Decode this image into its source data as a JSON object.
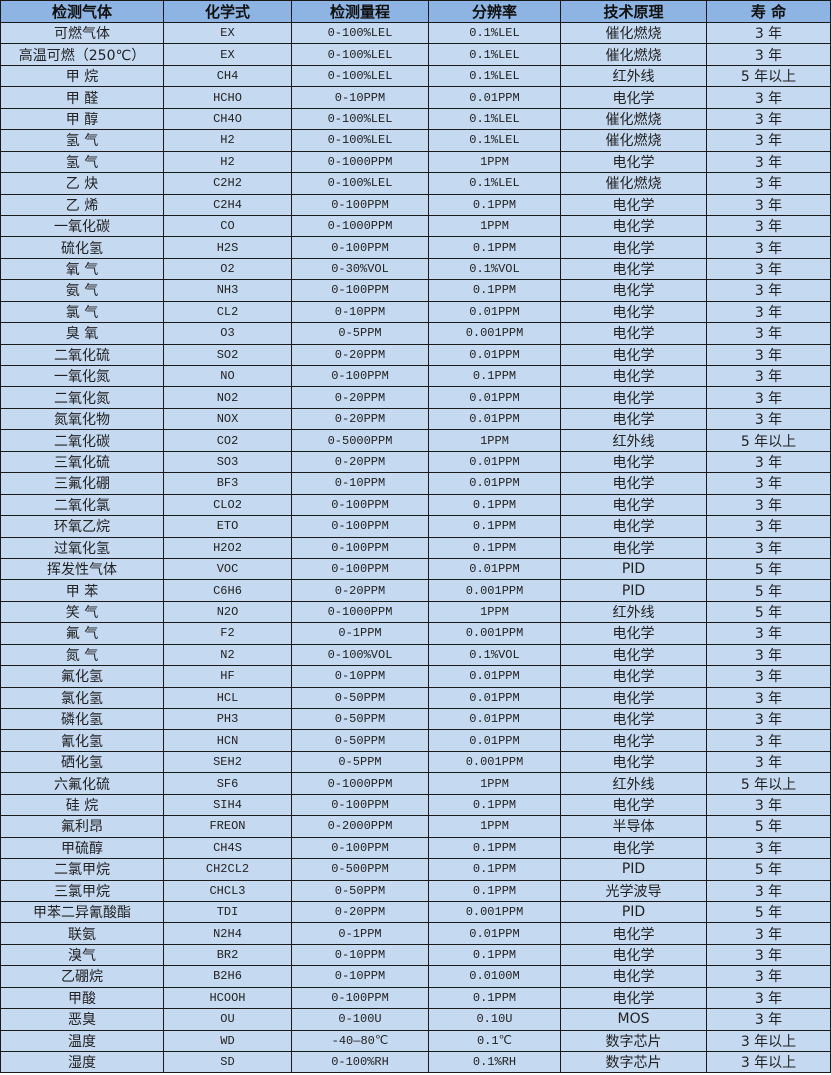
{
  "colors": {
    "header_bg": "#8db4e2",
    "row_bg": "#c5d9f1",
    "border": "#1a1a1a"
  },
  "table": {
    "headers": [
      "检测气体",
      "化学式",
      "检测量程",
      "分辨率",
      "技术原理",
      "寿 命"
    ],
    "rows": [
      [
        "可燃气体",
        "EX",
        "0-100%LEL",
        "0.1%LEL",
        "催化燃烧",
        "3 年"
      ],
      [
        "高温可燃（250℃）",
        "EX",
        "0-100%LEL",
        "0.1%LEL",
        "催化燃烧",
        "3 年"
      ],
      [
        "甲 烷",
        "CH4",
        "0-100%LEL",
        "0.1%LEL",
        "红外线",
        "5 年以上"
      ],
      [
        "甲 醛",
        "HCHO",
        "0-10PPM",
        "0.01PPM",
        "电化学",
        "3 年"
      ],
      [
        "甲 醇",
        "CH4O",
        "0-100%LEL",
        "0.1%LEL",
        "催化燃烧",
        "3 年"
      ],
      [
        "氢 气",
        "H2",
        "0-100%LEL",
        "0.1%LEL",
        "催化燃烧",
        "3 年"
      ],
      [
        "氢 气",
        "H2",
        "0-1000PPM",
        "1PPM",
        "电化学",
        "3 年"
      ],
      [
        "乙 炔",
        "C2H2",
        "0-100%LEL",
        "0.1%LEL",
        "催化燃烧",
        "3 年"
      ],
      [
        "乙 烯",
        "C2H4",
        "0-100PPM",
        "0.1PPM",
        "电化学",
        "3 年"
      ],
      [
        "一氧化碳",
        "CO",
        "0-1000PPM",
        "1PPM",
        "电化学",
        "3 年"
      ],
      [
        "硫化氢",
        "H2S",
        "0-100PPM",
        "0.1PPM",
        "电化学",
        "3 年"
      ],
      [
        "氧 气",
        "O2",
        "0-30%VOL",
        "0.1%VOL",
        "电化学",
        "3 年"
      ],
      [
        "氨 气",
        "NH3",
        "0-100PPM",
        "0.1PPM",
        "电化学",
        "3 年"
      ],
      [
        "氯 气",
        "CL2",
        "0-10PPM",
        "0.01PPM",
        "电化学",
        "3 年"
      ],
      [
        "臭 氧",
        "O3",
        "0-5PPM",
        "0.001PPM",
        "电化学",
        "3 年"
      ],
      [
        "二氧化硫",
        "SO2",
        "0-20PPM",
        "0.01PPM",
        "电化学",
        "3 年"
      ],
      [
        "一氧化氮",
        "NO",
        "0-100PPM",
        "0.1PPM",
        "电化学",
        "3 年"
      ],
      [
        "二氧化氮",
        "NO2",
        "0-20PPM",
        "0.01PPM",
        "电化学",
        "3 年"
      ],
      [
        "氮氧化物",
        "NOX",
        "0-20PPM",
        "0.01PPM",
        "电化学",
        "3 年"
      ],
      [
        "二氧化碳",
        "CO2",
        "0-5000PPM",
        "1PPM",
        "红外线",
        "5 年以上"
      ],
      [
        "三氧化硫",
        "SO3",
        "0-20PPM",
        "0.01PPM",
        "电化学",
        "3 年"
      ],
      [
        "三氟化硼",
        "BF3",
        "0-10PPM",
        "0.01PPM",
        "电化学",
        "3 年"
      ],
      [
        "二氧化氯",
        "CLO2",
        "0-100PPM",
        "0.1PPM",
        "电化学",
        "3 年"
      ],
      [
        "环氧乙烷",
        "ETO",
        "0-100PPM",
        "0.1PPM",
        "电化学",
        "3 年"
      ],
      [
        "过氧化氢",
        "H2O2",
        "0-100PPM",
        "0.1PPM",
        "电化学",
        "3 年"
      ],
      [
        "挥发性气体",
        "VOC",
        "0-100PPM",
        "0.01PPM",
        "PID",
        "5 年"
      ],
      [
        "甲 苯",
        "C6H6",
        "0-20PPM",
        "0.001PPM",
        "PID",
        "5 年"
      ],
      [
        "笑 气",
        "N2O",
        "0-1000PPM",
        "1PPM",
        "红外线",
        "5 年"
      ],
      [
        "氟 气",
        "F2",
        "0-1PPM",
        "0.001PPM",
        "电化学",
        "3 年"
      ],
      [
        "氮 气",
        "N2",
        "0-100%VOL",
        "0.1%VOL",
        "电化学",
        "3 年"
      ],
      [
        "氟化氢",
        "HF",
        "0-10PPM",
        "0.01PPM",
        "电化学",
        "3 年"
      ],
      [
        "氯化氢",
        "HCL",
        "0-50PPM",
        "0.01PPM",
        "电化学",
        "3 年"
      ],
      [
        "磷化氢",
        "PH3",
        "0-50PPM",
        "0.01PPM",
        "电化学",
        "3 年"
      ],
      [
        "氰化氢",
        "HCN",
        "0-50PPM",
        "0.01PPM",
        "电化学",
        "3 年"
      ],
      [
        "硒化氢",
        "SEH2",
        "0-5PPM",
        "0.001PPM",
        "电化学",
        "3 年"
      ],
      [
        "六氟化硫",
        "SF6",
        "0-1000PPM",
        "1PPM",
        "红外线",
        "5 年以上"
      ],
      [
        "硅 烷",
        "SIH4",
        "0-100PPM",
        "0.1PPM",
        "电化学",
        "3 年"
      ],
      [
        "氟利昂",
        "FREON",
        "0-2000PPM",
        "1PPM",
        "半导体",
        "5 年"
      ],
      [
        "甲硫醇",
        "CH4S",
        "0-100PPM",
        "0.1PPM",
        "电化学",
        "3 年"
      ],
      [
        "二氯甲烷",
        "CH2CL2",
        "0-500PPM",
        "0.1PPM",
        "PID",
        "5 年"
      ],
      [
        "三氯甲烷",
        "CHCL3",
        "0-50PPM",
        "0.1PPM",
        "光学波导",
        "3 年"
      ],
      [
        "甲苯二异氰酸酯",
        "TDI",
        "0-20PPM",
        "0.001PPM",
        "PID",
        "5 年"
      ],
      [
        "联氨",
        "N2H4",
        "0-1PPM",
        "0.01PPM",
        "电化学",
        "3 年"
      ],
      [
        "溴气",
        "BR2",
        "0-10PPM",
        "0.1PPM",
        "电化学",
        "3 年"
      ],
      [
        "乙硼烷",
        "B2H6",
        "0-10PPM",
        "0.0100M",
        "电化学",
        "3 年"
      ],
      [
        "甲酸",
        "HCOOH",
        "0-100PPM",
        "0.1PPM",
        "电化学",
        "3 年"
      ],
      [
        "恶臭",
        "OU",
        "0-100U",
        "0.10U",
        "MOS",
        "3 年"
      ],
      [
        "温度",
        "WD",
        "-40—80℃",
        "0.1℃",
        "数字芯片",
        "3 年以上"
      ],
      [
        "湿度",
        "SD",
        "0-100%RH",
        "0.1%RH",
        "数字芯片",
        "3 年以上"
      ]
    ]
  }
}
